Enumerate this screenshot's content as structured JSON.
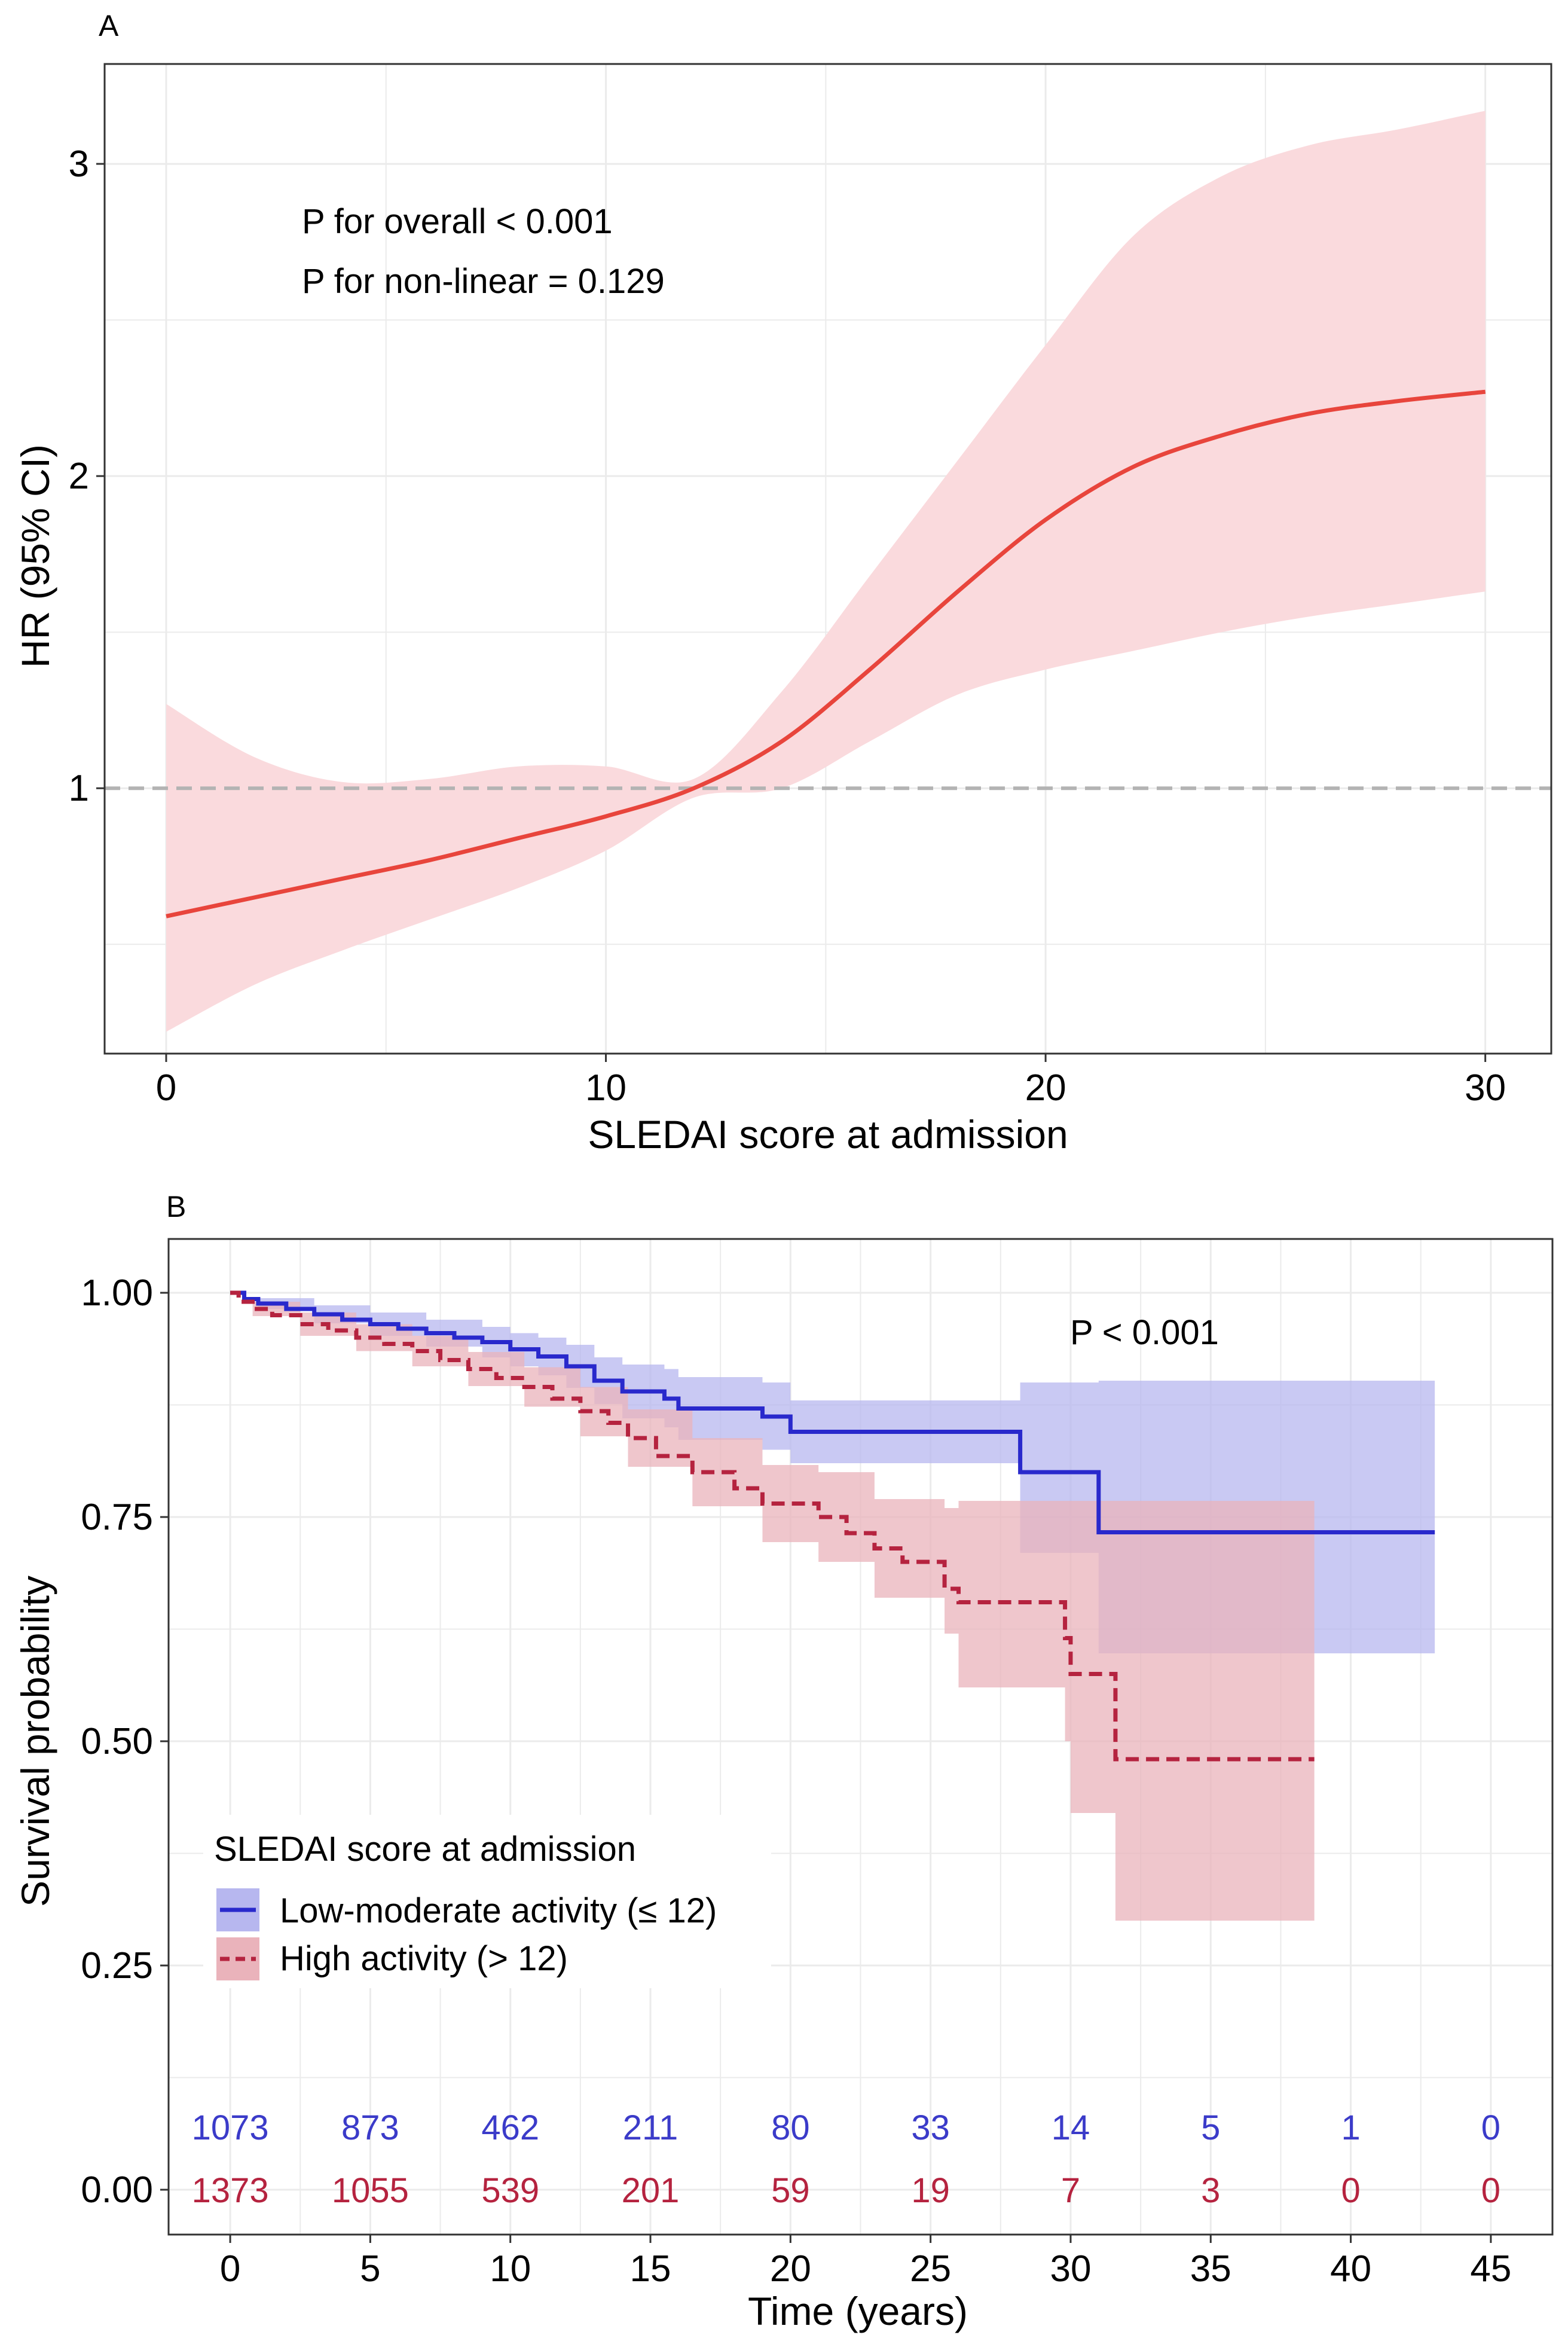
{
  "chart_data": [
    {
      "id": "A",
      "panel_label": "A",
      "type": "line",
      "title": "",
      "xlabel": "SLEDAI score at admission",
      "ylabel": "HR (95% CI)",
      "xlim": [
        -1.4,
        31.5
      ],
      "ylim": [
        0.15,
        3.32
      ],
      "xticks": [
        0,
        10,
        20,
        30
      ],
      "xtick_labels": [
        "0",
        "10",
        "20",
        "30"
      ],
      "yticks": [
        1,
        2,
        3
      ],
      "ytick_labels": [
        "1",
        "2",
        "3"
      ],
      "grid": true,
      "reference_line": {
        "y": 1,
        "style": "dashed"
      },
      "annotations": [
        "P for overall < 0.001",
        "P for non-linear = 0.129"
      ],
      "colors": {
        "line": "#e8453c",
        "band": "#fadadd",
        "reference": "#b3b3b3"
      },
      "series": [
        {
          "name": "HR",
          "x": [
            0,
            2,
            4,
            6,
            8,
            10,
            12,
            14,
            16,
            18,
            20,
            22,
            24,
            26,
            28,
            30
          ],
          "y": [
            0.59,
            0.65,
            0.71,
            0.77,
            0.84,
            0.91,
            1.0,
            1.15,
            1.38,
            1.63,
            1.86,
            2.03,
            2.13,
            2.2,
            2.24,
            2.27
          ],
          "lower": [
            0.22,
            0.37,
            0.48,
            0.58,
            0.68,
            0.8,
            0.97,
            1.0,
            1.15,
            1.3,
            1.38,
            1.44,
            1.5,
            1.55,
            1.59,
            1.63
          ],
          "upper": [
            1.27,
            1.1,
            1.02,
            1.03,
            1.07,
            1.07,
            1.03,
            1.31,
            1.68,
            2.05,
            2.42,
            2.77,
            2.96,
            3.06,
            3.11,
            3.17
          ]
        }
      ]
    },
    {
      "id": "B",
      "panel_label": "B",
      "type": "line",
      "title": "",
      "xlabel": "Time (years)",
      "ylabel": "Survival probability",
      "xlim": [
        -2.2,
        47.2
      ],
      "ylim": [
        -0.05,
        1.06
      ],
      "xticks": [
        0,
        5,
        10,
        15,
        20,
        25,
        30,
        35,
        40,
        45
      ],
      "xtick_labels": [
        "0",
        "5",
        "10",
        "15",
        "20",
        "25",
        "30",
        "35",
        "40",
        "45"
      ],
      "yticks": [
        0,
        0.25,
        0.5,
        0.75,
        1
      ],
      "ytick_labels": [
        "0.00",
        "0.25",
        "0.50",
        "0.75",
        "1.00"
      ],
      "grid": true,
      "pvalue": "P < 0.001",
      "legend": {
        "title": "SLEDAI score at admission",
        "position": "bottom-left",
        "entries": [
          "Low-moderate activity (≤ 12)",
          "High activity (> 12)"
        ]
      },
      "series": [
        {
          "name": "Low-moderate activity (≤ 12)",
          "line_style": "solid",
          "color": "#2929cc",
          "band_color": "#b7b7ef",
          "steps": [
            [
              0,
              1.0
            ],
            [
              0.5,
              0.993
            ],
            [
              1,
              0.988
            ],
            [
              2,
              0.982
            ],
            [
              3,
              0.976
            ],
            [
              4,
              0.97
            ],
            [
              5,
              0.965
            ],
            [
              6,
              0.96
            ],
            [
              7,
              0.955
            ],
            [
              8,
              0.95
            ],
            [
              9,
              0.945
            ],
            [
              10,
              0.937
            ],
            [
              11,
              0.929
            ],
            [
              12,
              0.918
            ],
            [
              13,
              0.902
            ],
            [
              14,
              0.89
            ],
            [
              15.5,
              0.882
            ],
            [
              16,
              0.871
            ],
            [
              19,
              0.862
            ],
            [
              20,
              0.845
            ],
            [
              28.2,
              0.8
            ],
            [
              31,
              0.733
            ],
            [
              43,
              0.733
            ]
          ],
          "band": [
            [
              0,
              1.0,
              1.0
            ],
            [
              1,
              0.982,
              0.994
            ],
            [
              3,
              0.966,
              0.986
            ],
            [
              5,
              0.952,
              0.978
            ],
            [
              7,
              0.94,
              0.97
            ],
            [
              9,
              0.928,
              0.962
            ],
            [
              10,
              0.918,
              0.955
            ],
            [
              11,
              0.908,
              0.95
            ],
            [
              12,
              0.894,
              0.942
            ],
            [
              13,
              0.876,
              0.928
            ],
            [
              14,
              0.86,
              0.92
            ],
            [
              15.5,
              0.85,
              0.915
            ],
            [
              16,
              0.836,
              0.906
            ],
            [
              19,
              0.825,
              0.9
            ],
            [
              20,
              0.81,
              0.88
            ],
            [
              28.2,
              0.71,
              0.9
            ],
            [
              31,
              0.598,
              0.902
            ],
            [
              43,
              0.598,
              0.902
            ]
          ]
        },
        {
          "name": "High activity (> 12)",
          "line_style": "dashed",
          "color": "#b5233f",
          "band_color": "#eab3bb",
          "steps": [
            [
              0,
              1.0
            ],
            [
              0.3,
              0.99
            ],
            [
              0.8,
              0.982
            ],
            [
              1.5,
              0.975
            ],
            [
              2.5,
              0.965
            ],
            [
              3.5,
              0.958
            ],
            [
              4.5,
              0.95
            ],
            [
              5.5,
              0.943
            ],
            [
              6.5,
              0.935
            ],
            [
              7.5,
              0.925
            ],
            [
              8.5,
              0.915
            ],
            [
              9.5,
              0.905
            ],
            [
              10.5,
              0.895
            ],
            [
              11.5,
              0.882
            ],
            [
              12.5,
              0.868
            ],
            [
              13.5,
              0.855
            ],
            [
              14.2,
              0.838
            ],
            [
              15.2,
              0.818
            ],
            [
              16.5,
              0.8
            ],
            [
              18,
              0.782
            ],
            [
              19,
              0.765
            ],
            [
              21,
              0.75
            ],
            [
              22,
              0.732
            ],
            [
              23,
              0.715
            ],
            [
              24,
              0.7
            ],
            [
              25.5,
              0.67
            ],
            [
              26,
              0.655
            ],
            [
              29.8,
              0.615
            ],
            [
              30,
              0.575
            ],
            [
              31.6,
              0.48
            ],
            [
              38.7,
              0.48
            ]
          ],
          "band": [
            [
              0,
              1.0,
              1.0
            ],
            [
              0.8,
              0.974,
              0.99
            ],
            [
              2.5,
              0.952,
              0.978
            ],
            [
              4.5,
              0.935,
              0.965
            ],
            [
              6.5,
              0.918,
              0.952
            ],
            [
              8.5,
              0.896,
              0.934
            ],
            [
              10.5,
              0.873,
              0.917
            ],
            [
              12.5,
              0.84,
              0.895
            ],
            [
              14.2,
              0.806,
              0.87
            ],
            [
              16.5,
              0.762,
              0.838
            ],
            [
              19,
              0.722,
              0.808
            ],
            [
              21,
              0.7,
              0.8
            ],
            [
              23,
              0.66,
              0.77
            ],
            [
              25.5,
              0.62,
              0.76
            ],
            [
              26,
              0.56,
              0.768
            ],
            [
              29.8,
              0.5,
              0.768
            ],
            [
              30,
              0.42,
              0.768
            ],
            [
              31.6,
              0.3,
              0.768
            ],
            [
              38.7,
              0.3,
              0.768
            ]
          ]
        }
      ],
      "risk_table": {
        "times": [
          0,
          5,
          10,
          15,
          20,
          25,
          30,
          35,
          40,
          45
        ],
        "rows": [
          {
            "name": "Low-moderate activity (≤ 12)",
            "y": 0.07,
            "color": "#3b3bc9",
            "labels": [
              "1073",
              "873",
              "462",
              "211",
              "80",
              "33",
              "14",
              "5",
              "1",
              "0"
            ]
          },
          {
            "name": "High activity (> 12)",
            "y": 0.0,
            "color": "#b5233f",
            "labels": [
              "1373",
              "1055",
              "539",
              "201",
              "59",
              "19",
              "7",
              "3",
              "0",
              "0"
            ]
          }
        ]
      }
    }
  ]
}
